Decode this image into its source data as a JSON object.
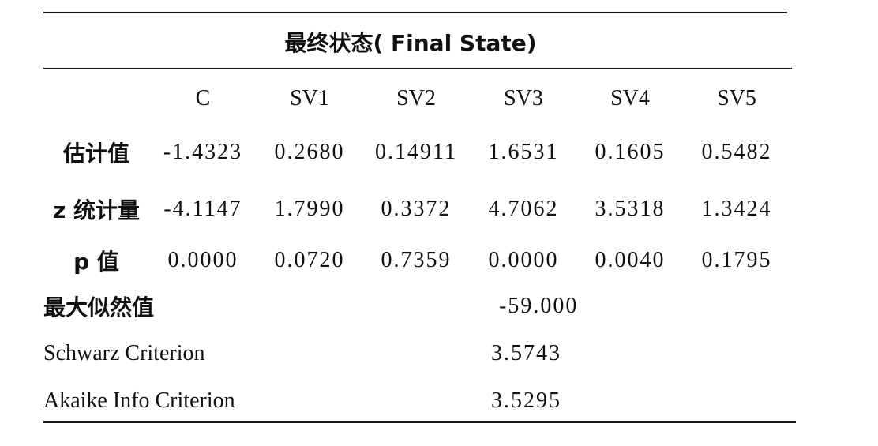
{
  "table": {
    "title": "最终状态( Final State)",
    "columns": [
      "C",
      "SV1",
      "SV2",
      "SV3",
      "SV4",
      "SV5"
    ],
    "rows": [
      {
        "label": "估计值",
        "cells": [
          "-1.4323",
          "0.2680",
          "0.14911",
          "1.6531",
          "0.1605",
          "0.5482"
        ]
      },
      {
        "label": "z 统计量",
        "cells": [
          "-4.1147",
          "1.7990",
          "0.3372",
          "4.7062",
          "3.5318",
          "1.3424"
        ]
      },
      {
        "label": "p 值",
        "cells": [
          "0.0000",
          "0.0720",
          "0.7359",
          "0.0000",
          "0.0040",
          "0.1795"
        ]
      }
    ],
    "summary": [
      {
        "label": "最大似然值",
        "value": "-59.000"
      },
      {
        "label": "Schwarz Criterion",
        "value": "3.5743"
      },
      {
        "label": "Akaike Info Criterion",
        "value": "3.5295"
      }
    ]
  }
}
